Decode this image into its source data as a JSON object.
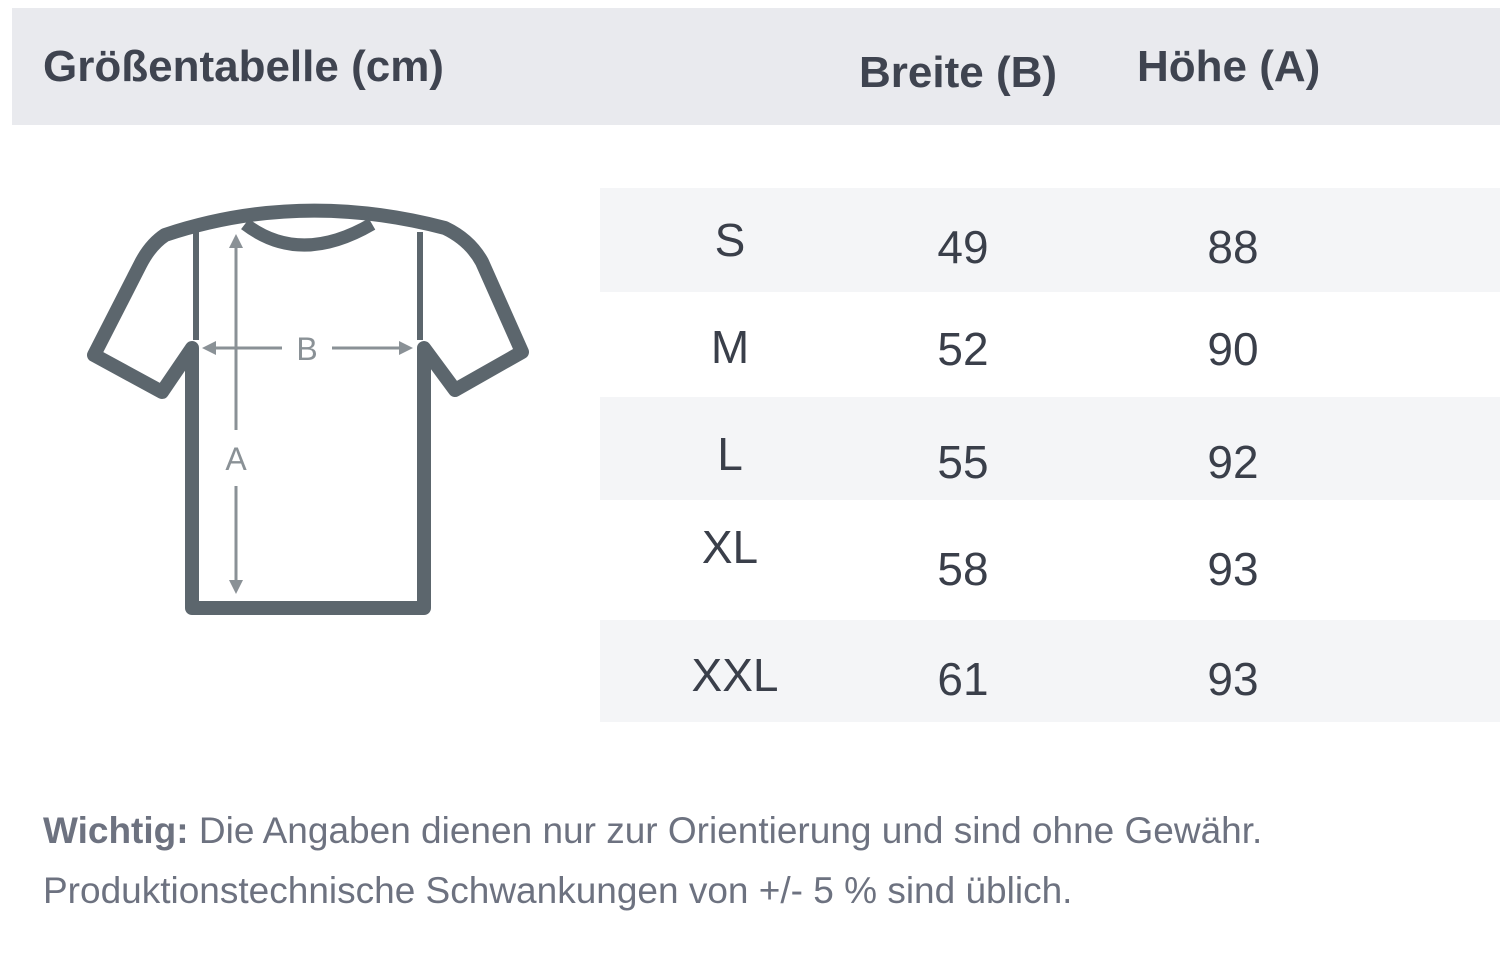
{
  "header": {
    "title": "Größentabelle (cm)",
    "col_width": "Breite (B)",
    "col_height": "Höhe (A)"
  },
  "diagram": {
    "label_width": "B",
    "label_height": "A",
    "icon": "tshirt-icon"
  },
  "rows": [
    {
      "size": "S",
      "width": "49",
      "height": "88"
    },
    {
      "size": "M",
      "width": "52",
      "height": "90"
    },
    {
      "size": "L",
      "width": "55",
      "height": "92"
    },
    {
      "size": "XL",
      "width": "58",
      "height": "93"
    },
    {
      "size": "XXL",
      "width": "61",
      "height": "93"
    }
  ],
  "note": {
    "bold": "Wichtig:",
    "line1": " Die Angaben dienen nur zur Orientierung und sind ohne Gewähr.",
    "line2": "Produktionstechnische Schwankungen von +/- 5 % sind üblich."
  },
  "colors": {
    "header_bg": "#e9eaee",
    "row_shade": "#f4f5f7",
    "shirt_outline": "#5c666d",
    "arrow": "#8a9196"
  }
}
